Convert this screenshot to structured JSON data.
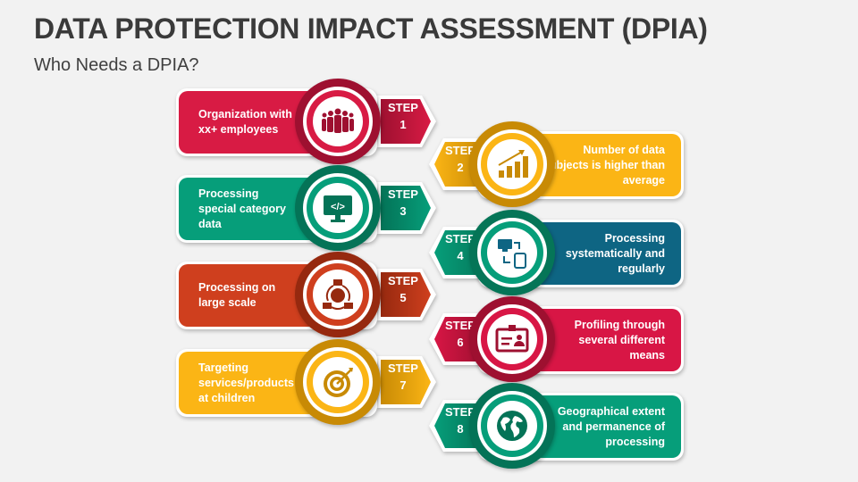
{
  "header": {
    "title": "DATA PROTECTION IMPACT ASSESSMENT (DPIA)",
    "subtitle": "Who Needs a DPIA?"
  },
  "step_word": "STEP",
  "steps": [
    {
      "number": "1",
      "text": "Organization with xx+ employees",
      "side": "left",
      "color": "#d81b44",
      "dark": "#9e1030",
      "icon": "people-group-icon"
    },
    {
      "number": "2",
      "text": "Number of data subjects is higher than average",
      "side": "right",
      "color": "#fbb515",
      "dark": "#c88a05",
      "icon": "growth-chart-icon"
    },
    {
      "number": "3",
      "text": "Processing special category data",
      "side": "left",
      "color": "#069e7a",
      "dark": "#047357",
      "icon": "code-monitor-icon"
    },
    {
      "number": "4",
      "text": "Processing systematically and regularly",
      "side": "right",
      "color": "#0e6583",
      "dark": "#067a5c",
      "ring": "#069e7a",
      "icon": "device-sync-icon"
    },
    {
      "number": "5",
      "text": "Processing on large scale",
      "side": "left",
      "color": "#cf3f1e",
      "dark": "#96290f",
      "icon": "global-network-icon"
    },
    {
      "number": "6",
      "text": "Profiling through several different means",
      "side": "right",
      "color": "#d81645",
      "dark": "#9e1030",
      "icon": "id-badge-icon"
    },
    {
      "number": "7",
      "text": "Targeting services/products at children",
      "side": "left",
      "color": "#fbb515",
      "dark": "#c88a05",
      "icon": "target-icon"
    },
    {
      "number": "8",
      "text": "Geographical extent and permanence of processing",
      "side": "right",
      "color": "#069e7a",
      "dark": "#047357",
      "icon": "globe-icon"
    }
  ]
}
